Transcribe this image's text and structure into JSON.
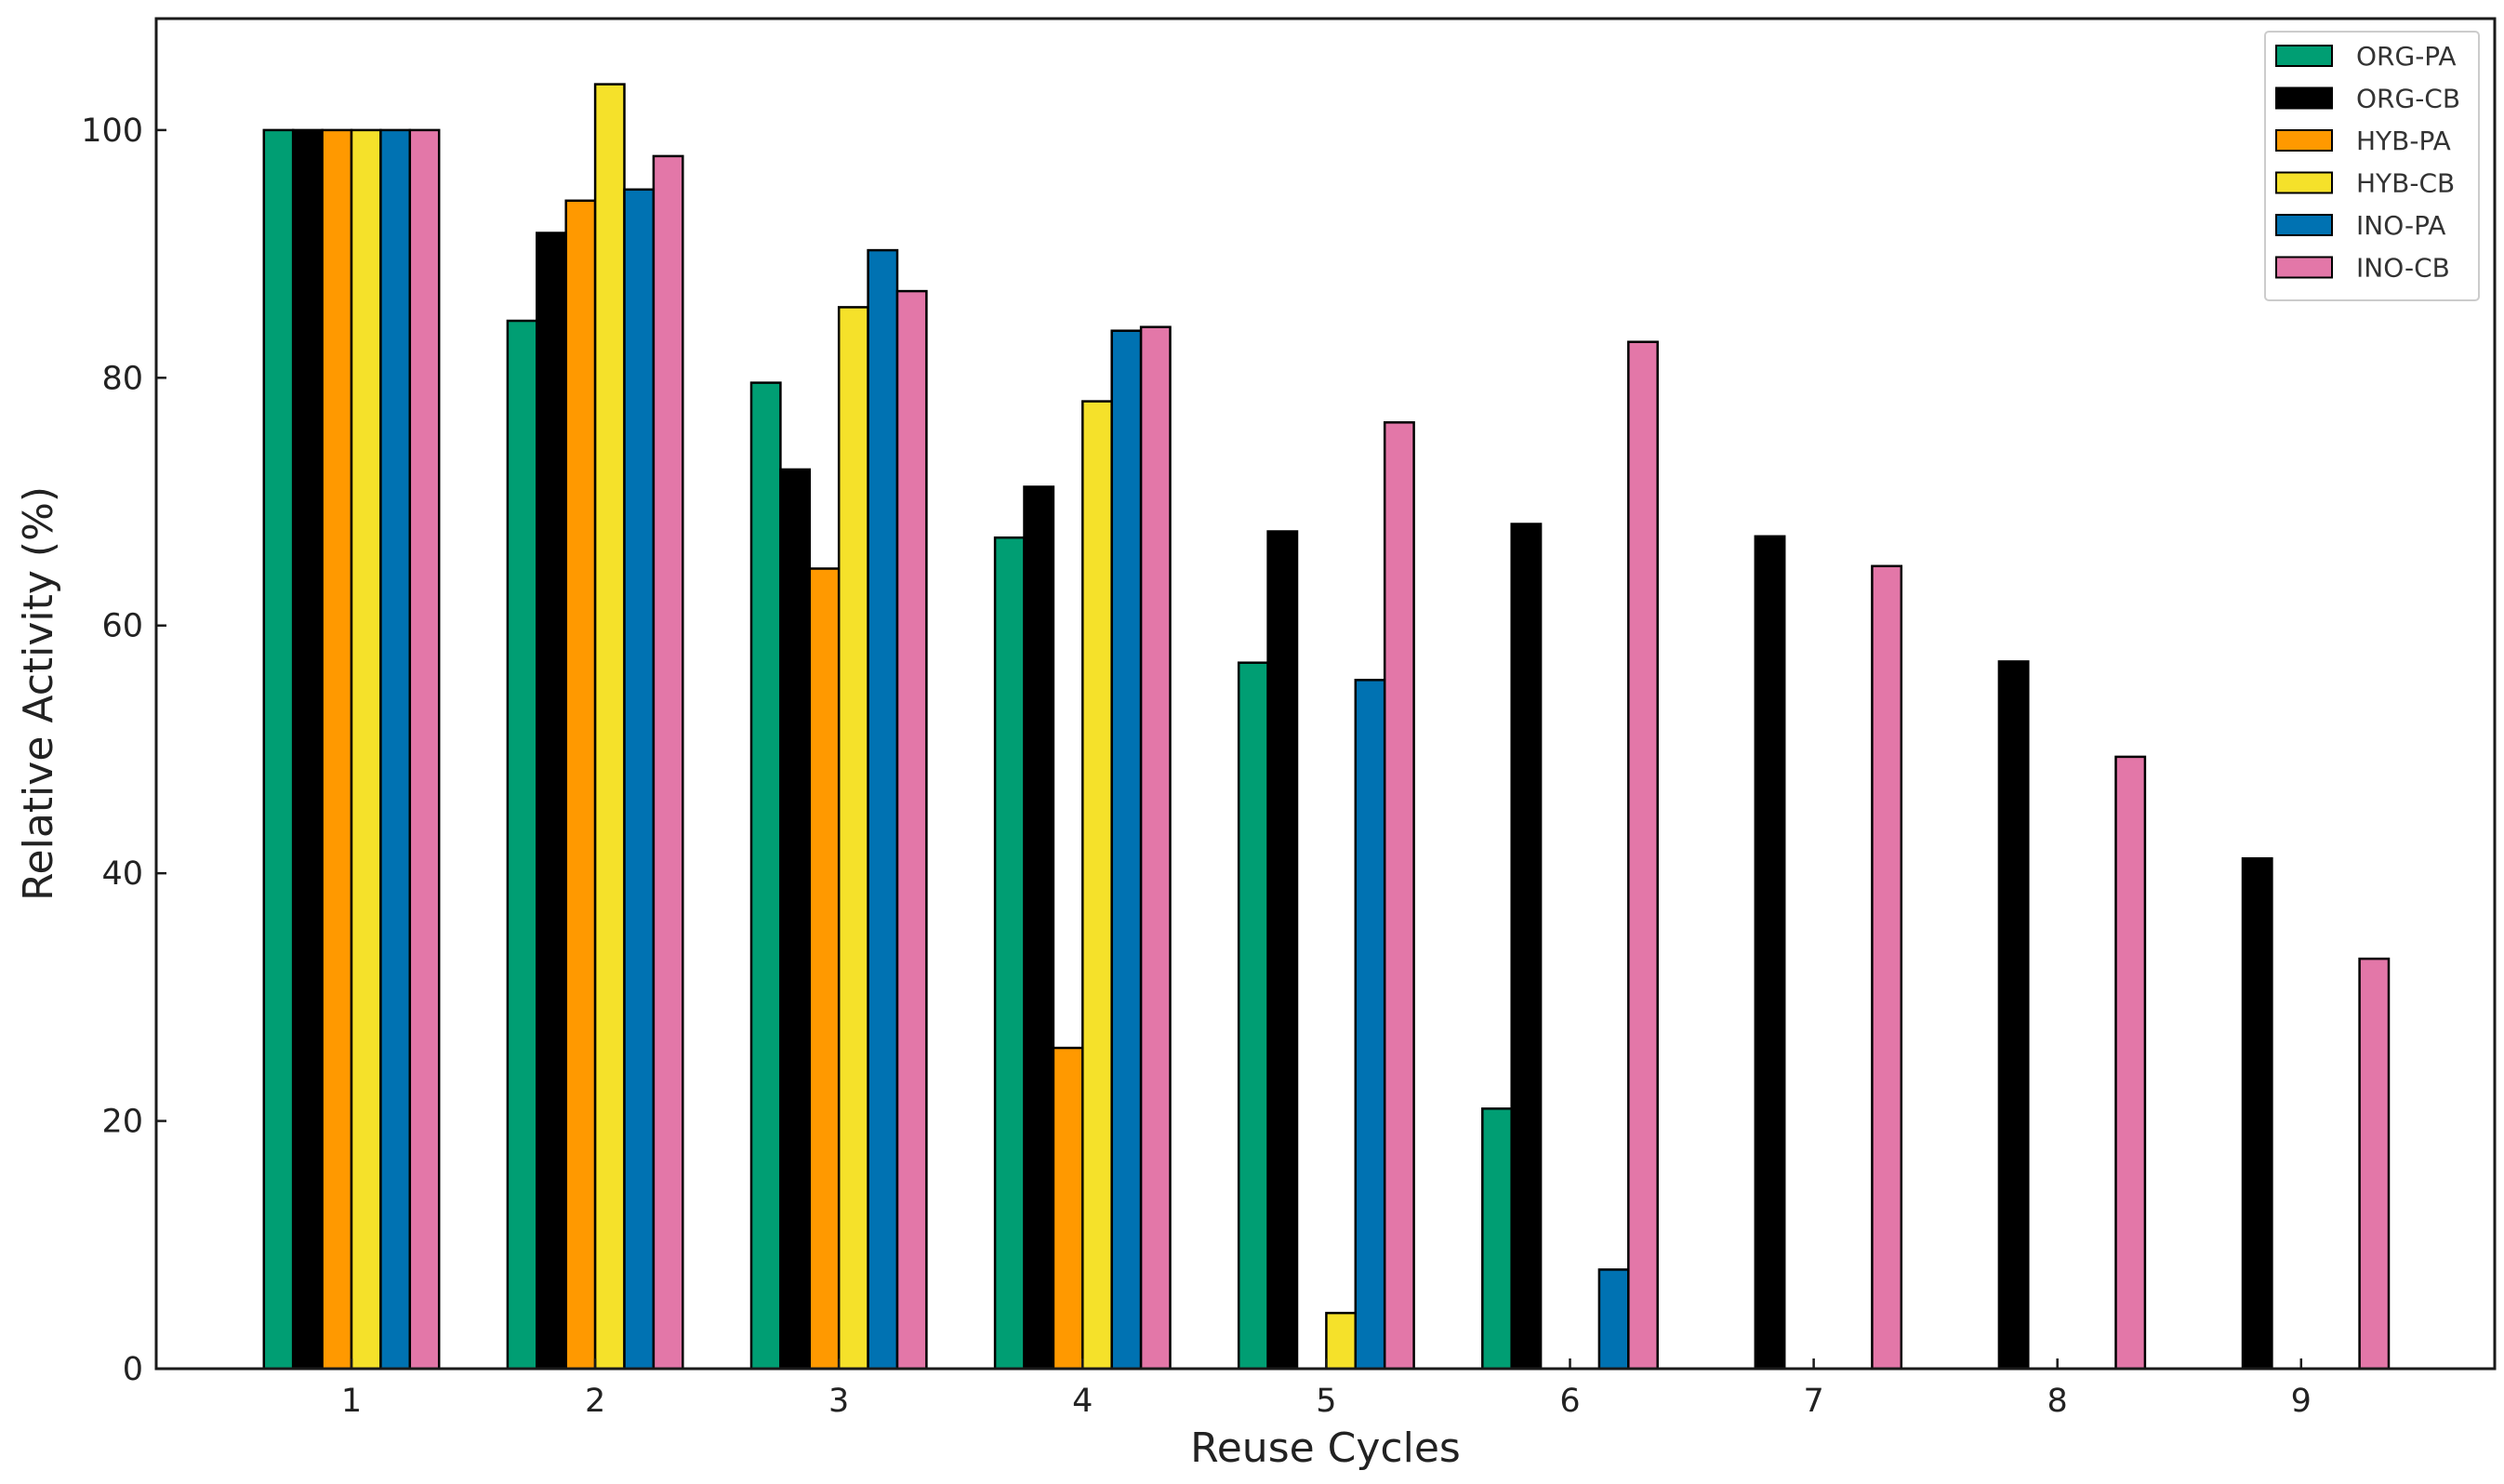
{
  "chart_data": {
    "type": "bar",
    "title": "",
    "xlabel": "Reuse Cycles",
    "ylabel": "Relative Activity (%)",
    "categories": [
      "1",
      "2",
      "3",
      "4",
      "5",
      "6",
      "7",
      "8",
      "9"
    ],
    "ylim": [
      0,
      109
    ],
    "yticks": [
      "0",
      "20",
      "40",
      "60",
      "80",
      "100"
    ],
    "grid": false,
    "legend_position": "top-right",
    "series": [
      {
        "name": "ORG-PA",
        "color": "#009E73",
        "values": [
          100,
          84.6,
          79.6,
          67.1,
          57.0,
          21.0,
          null,
          null,
          null
        ]
      },
      {
        "name": "ORG-CB",
        "color": "#000000",
        "values": [
          100,
          91.7,
          72.6,
          71.2,
          67.6,
          68.2,
          67.2,
          57.1,
          41.2
        ]
      },
      {
        "name": "HYB-PA",
        "color": "#FF9900",
        "values": [
          100,
          94.3,
          64.6,
          25.9,
          null,
          null,
          null,
          null,
          null
        ]
      },
      {
        "name": "HYB-CB",
        "color": "#F5E12A",
        "values": [
          100,
          103.7,
          85.7,
          78.1,
          4.5,
          null,
          null,
          null,
          null
        ]
      },
      {
        "name": "INO-PA",
        "color": "#0072B2",
        "values": [
          100,
          95.2,
          90.3,
          83.8,
          55.6,
          8.0,
          null,
          null,
          null
        ]
      },
      {
        "name": "INO-CB",
        "color": "#E377A8",
        "values": [
          100,
          97.9,
          87.0,
          84.1,
          76.4,
          82.9,
          64.8,
          49.4,
          33.1
        ]
      }
    ]
  }
}
